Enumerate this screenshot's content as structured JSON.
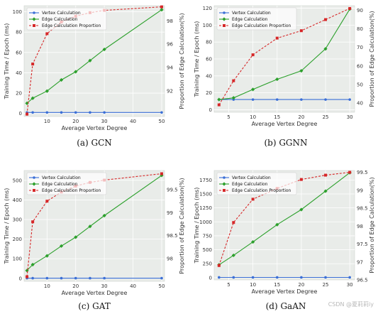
{
  "colors": {
    "vertex": "#3b6fd6",
    "edge": "#2ca02c",
    "proportion": "#d62728",
    "plot_bg": "#e9ece9",
    "grid": "#ffffff"
  },
  "watermark": "CSDN @夏莉莉iy",
  "chart_data": [
    {
      "type": "line",
      "caption": "(a) GCN",
      "xlabel": "Average Vertex Degree",
      "ylabel": "Training Time / Epoch (ms)",
      "y2label": "Proportion of Edge Calculation(%)",
      "xlim": [
        2,
        51
      ],
      "ylim": [
        -3,
        106
      ],
      "y2lim": [
        89.8,
        99.3
      ],
      "xticks": [
        10,
        20,
        30,
        40,
        50
      ],
      "yticks": [
        0,
        20,
        40,
        60,
        80,
        100
      ],
      "y2ticks": [
        92,
        94,
        96,
        98
      ],
      "x": [
        3,
        5,
        10,
        15,
        20,
        25,
        30,
        50
      ],
      "legend": "upper left",
      "series": [
        {
          "name": "Vertex Calculation",
          "axis": "left",
          "values": [
            1,
            1,
            1,
            1,
            1,
            1,
            1,
            1
          ]
        },
        {
          "name": "Edge Calculation",
          "axis": "left",
          "values": [
            10,
            15,
            22,
            33,
            41,
            52,
            63,
            102
          ]
        },
        {
          "name": "Edge Calculation Proportion",
          "axis": "right",
          "values": [
            90.0,
            94.3,
            96.9,
            97.9,
            98.4,
            98.7,
            98.9,
            99.2
          ]
        }
      ]
    },
    {
      "type": "line",
      "caption": "(b) GGNN",
      "xlabel": "Average Vertex Degree",
      "ylabel": "Training Time / Epoch (ms)",
      "y2label": "Proportion of Edge Calculation(%)",
      "xlim": [
        2,
        31
      ],
      "ylim": [
        -3,
        123
      ],
      "y2lim": [
        35,
        92.5
      ],
      "xticks": [
        5,
        10,
        15,
        20,
        25,
        30
      ],
      "yticks": [
        0,
        20,
        40,
        60,
        80,
        100,
        120
      ],
      "y2ticks": [
        40,
        50,
        60,
        70,
        80,
        90
      ],
      "x": [
        3,
        6,
        10,
        15,
        20,
        25,
        30
      ],
      "legend": "upper left",
      "series": [
        {
          "name": "Vertex Calculation",
          "axis": "left",
          "values": [
            12,
            12,
            12,
            12,
            12,
            12,
            12
          ]
        },
        {
          "name": "Edge Calculation",
          "axis": "left",
          "values": [
            12,
            14,
            24,
            36,
            46,
            72,
            119
          ]
        },
        {
          "name": "Edge Calculation Proportion",
          "axis": "right",
          "values": [
            39,
            52,
            66,
            75,
            79,
            85,
            91
          ]
        }
      ]
    },
    {
      "type": "line",
      "caption": "(c) GAT",
      "xlabel": "Average Vertex Degree",
      "ylabel": "Training Time / Epoch (ms)",
      "y2label": "Proportion of Edge Calculation(%)",
      "xlim": [
        2,
        51
      ],
      "ylim": [
        -15,
        550
      ],
      "y2lim": [
        97.5,
        99.92
      ],
      "xticks": [
        10,
        20,
        30,
        40,
        50
      ],
      "yticks": [
        0,
        100,
        200,
        300,
        400,
        500
      ],
      "y2ticks": [
        98.0,
        98.5,
        99.0,
        99.5
      ],
      "x": [
        3,
        5,
        10,
        15,
        20,
        25,
        30,
        50
      ],
      "legend": "upper left",
      "series": [
        {
          "name": "Vertex Calculation",
          "axis": "left",
          "values": [
            1,
            1,
            1,
            1,
            1,
            1,
            1,
            1
          ]
        },
        {
          "name": "Edge Calculation",
          "axis": "left",
          "values": [
            40,
            70,
            115,
            165,
            210,
            265,
            320,
            525
          ]
        },
        {
          "name": "Edge Calculation Proportion",
          "axis": "right",
          "values": [
            97.6,
            98.8,
            99.25,
            99.45,
            99.58,
            99.66,
            99.71,
            99.85
          ]
        }
      ]
    },
    {
      "type": "line",
      "caption": "(d) GaAN",
      "xlabel": "Average Vertex Degree",
      "ylabel": "Training Time / Epoch (ms)",
      "y2label": "Proportion of Edge Calculation(%)",
      "xlim": [
        2,
        31
      ],
      "ylim": [
        -40,
        1920
      ],
      "y2lim": [
        96.5,
        99.55
      ],
      "xticks": [
        5,
        10,
        15,
        20,
        25,
        30
      ],
      "yticks": [
        0,
        250,
        500,
        750,
        1000,
        1250,
        1500,
        1750
      ],
      "y2ticks": [
        96.5,
        97.0,
        97.5,
        98.0,
        98.5,
        99.0,
        99.5
      ],
      "x": [
        3,
        6,
        10,
        15,
        20,
        25,
        30
      ],
      "legend": "upper left",
      "series": [
        {
          "name": "Vertex Calculation",
          "axis": "left",
          "values": [
            5,
            5,
            5,
            5,
            5,
            5,
            5
          ]
        },
        {
          "name": "Edge Calculation",
          "axis": "left",
          "values": [
            230,
            400,
            640,
            950,
            1220,
            1550,
            1880
          ]
        },
        {
          "name": "Edge Calculation Proportion",
          "axis": "right",
          "values": [
            96.9,
            98.1,
            98.75,
            99.05,
            99.3,
            99.42,
            99.5
          ]
        }
      ]
    }
  ]
}
